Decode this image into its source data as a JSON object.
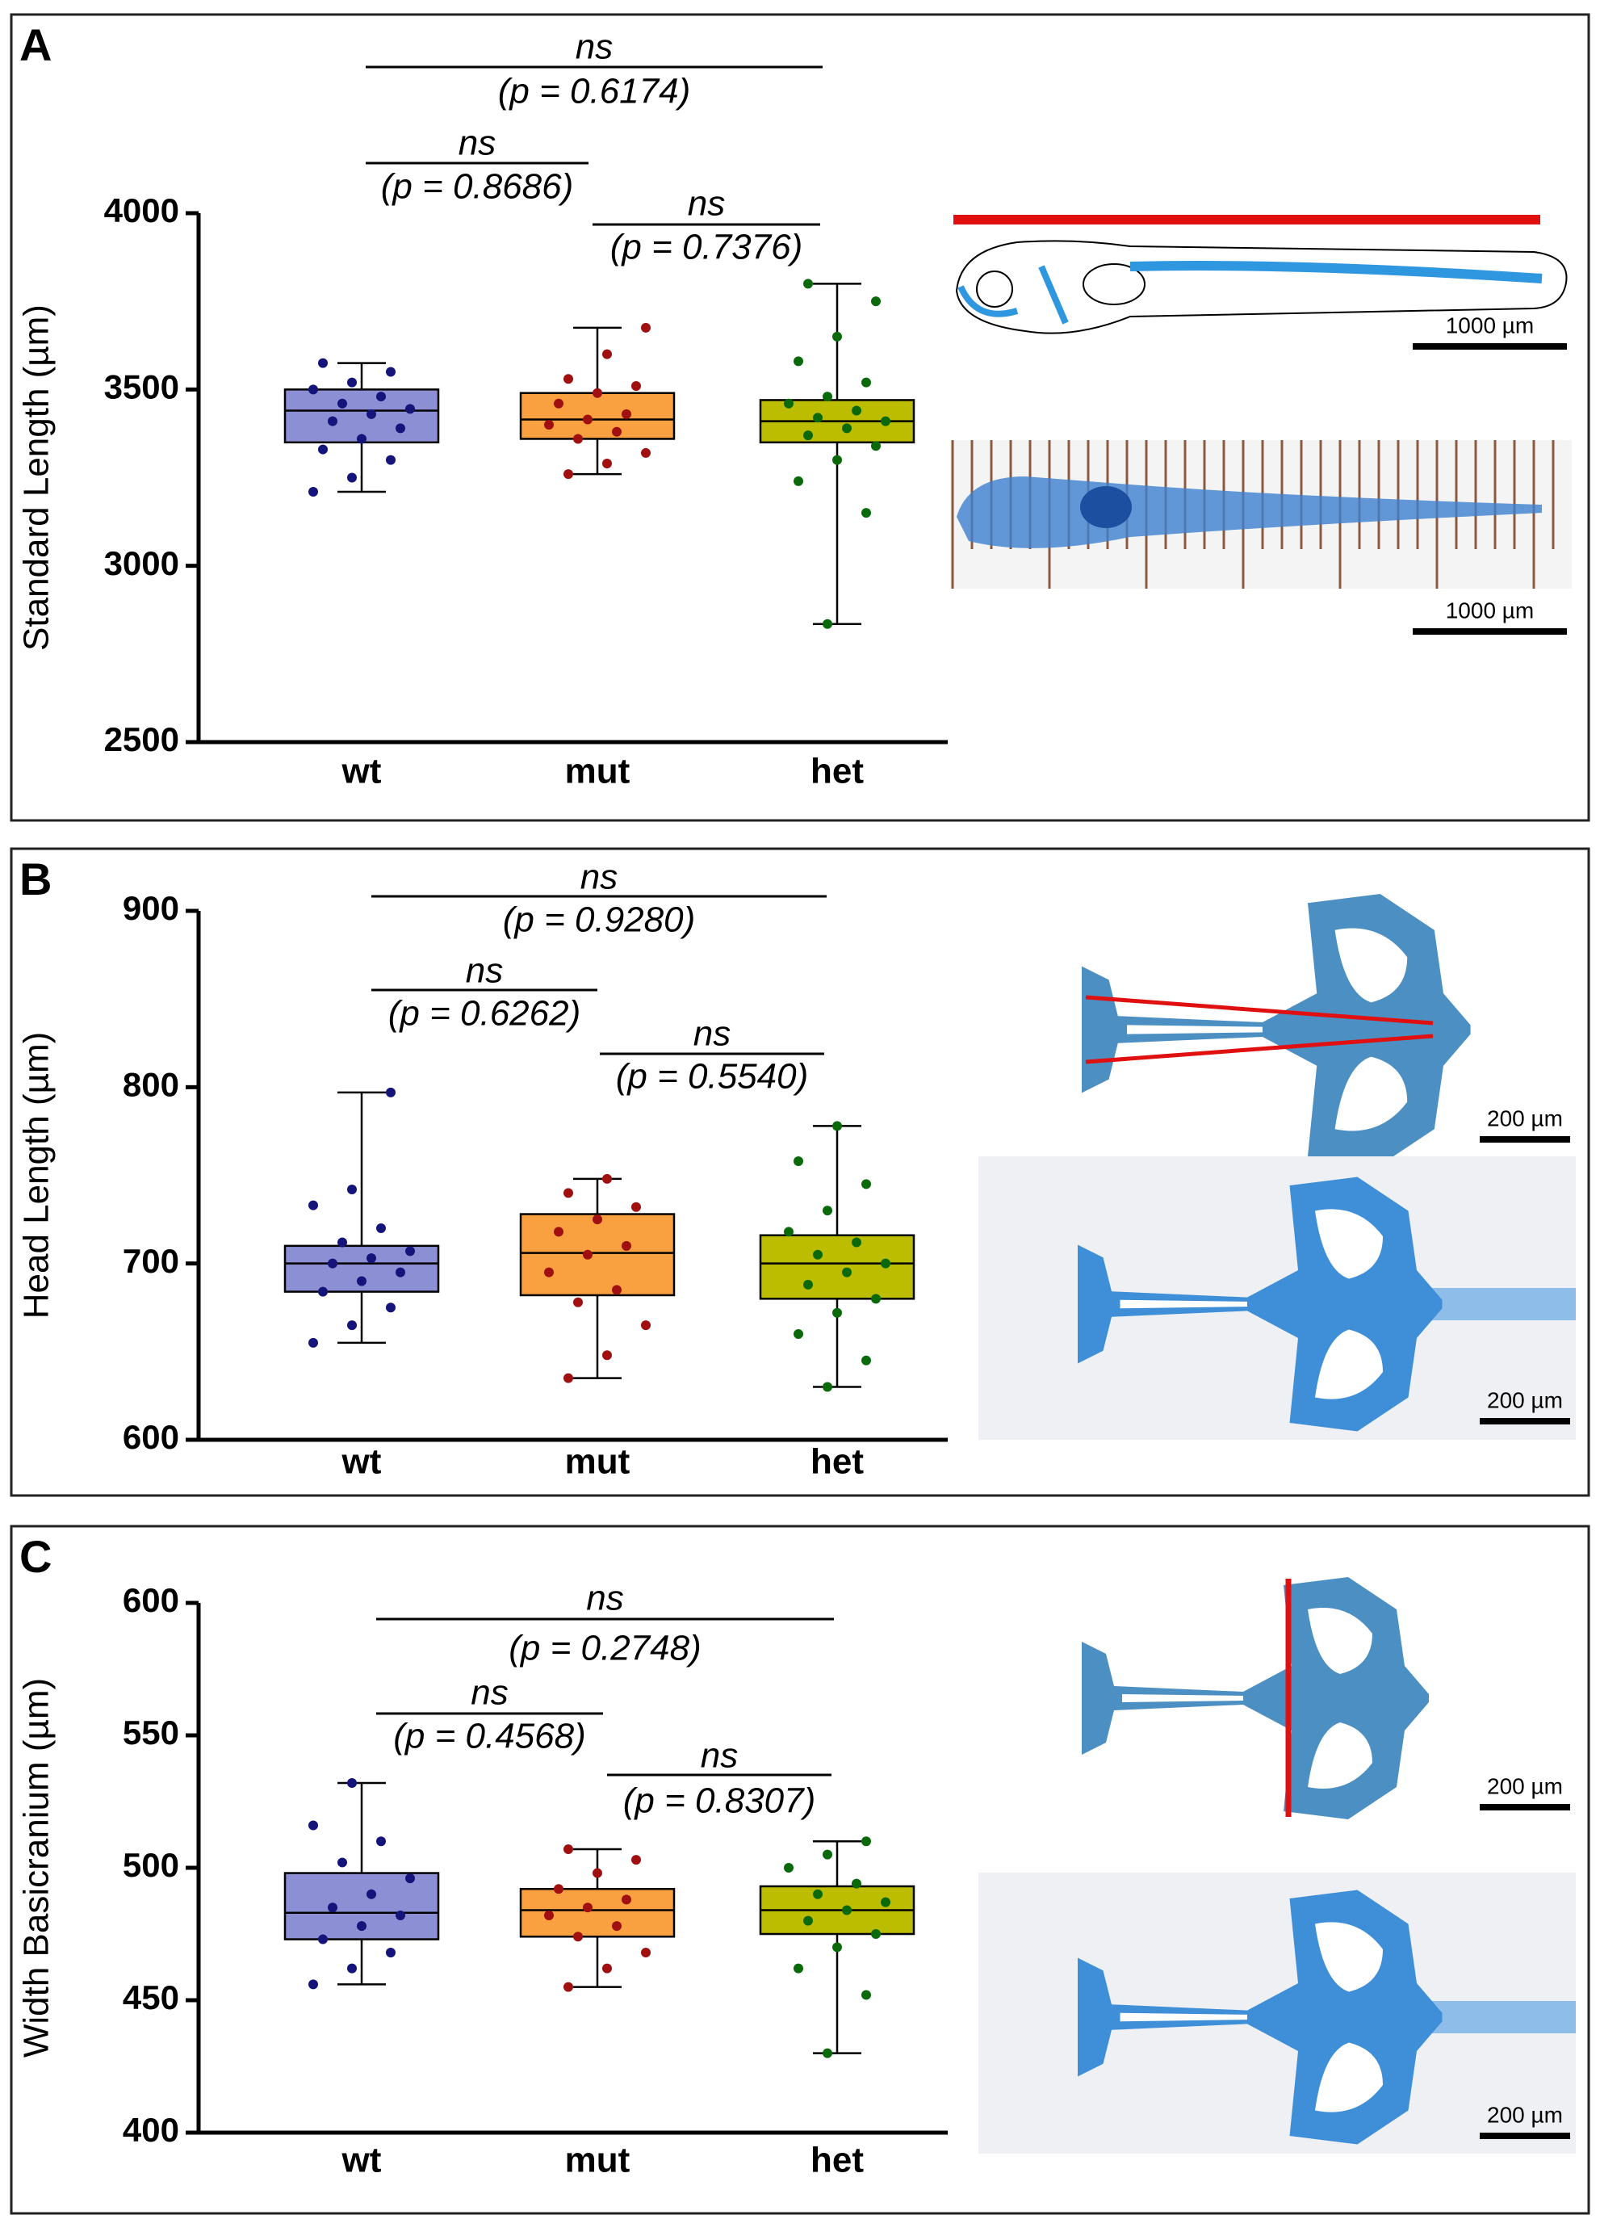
{
  "chart_data": [
    {
      "type": "box",
      "panel": "A",
      "ylabel": "Standard Length (µm)",
      "categories": [
        "wt",
        "mut",
        "het"
      ],
      "ylim": [
        2500,
        4000
      ],
      "yticks": [
        2500,
        3000,
        3500,
        4000
      ],
      "boxes": [
        {
          "min": 3210,
          "q1": 3350,
          "median": 3440,
          "q3": 3500,
          "max": 3575,
          "color": "#8c8fd4",
          "point_color": "#14147a",
          "points": [
            3210,
            3250,
            3300,
            3330,
            3360,
            3390,
            3410,
            3430,
            3445,
            3460,
            3480,
            3500,
            3520,
            3550,
            3575
          ]
        },
        {
          "min": 3260,
          "q1": 3360,
          "median": 3415,
          "q3": 3490,
          "max": 3675,
          "color": "#f9a040",
          "point_color": "#a01010",
          "points": [
            3260,
            3290,
            3320,
            3360,
            3380,
            3400,
            3415,
            3430,
            3460,
            3490,
            3510,
            3530,
            3600,
            3675
          ]
        },
        {
          "min": 2835,
          "q1": 3350,
          "median": 3410,
          "q3": 3470,
          "max": 3800,
          "color": "#bcbc00",
          "point_color": "#0a6a0a",
          "points": [
            2835,
            3150,
            3240,
            3300,
            3340,
            3370,
            3390,
            3410,
            3420,
            3440,
            3460,
            3480,
            3520,
            3580,
            3650,
            3750,
            3800
          ]
        }
      ],
      "comparisons": [
        {
          "label": "ns",
          "p": "(p = 0.6174)"
        },
        {
          "label": "ns",
          "p": "(p = 0.8686)"
        },
        {
          "label": "ns",
          "p": "(p = 0.7376)"
        }
      ],
      "scale_labels": [
        "1000 µm",
        "1000 µm"
      ]
    },
    {
      "type": "box",
      "panel": "B",
      "ylabel": "Head Length (µm)",
      "categories": [
        "wt",
        "mut",
        "het"
      ],
      "ylim": [
        600,
        900
      ],
      "yticks": [
        600,
        700,
        800,
        900
      ],
      "boxes": [
        {
          "min": 655,
          "q1": 684,
          "median": 700,
          "q3": 710,
          "max": 797,
          "color": "#8c8fd4",
          "point_color": "#14147a",
          "points": [
            655,
            665,
            675,
            684,
            690,
            695,
            700,
            703,
            707,
            712,
            720,
            733,
            742,
            797
          ]
        },
        {
          "min": 635,
          "q1": 682,
          "median": 706,
          "q3": 728,
          "max": 748,
          "color": "#f9a040",
          "point_color": "#a01010",
          "points": [
            635,
            648,
            665,
            678,
            685,
            695,
            705,
            710,
            718,
            725,
            732,
            740,
            748
          ]
        },
        {
          "min": 630,
          "q1": 680,
          "median": 700,
          "q3": 716,
          "max": 778,
          "color": "#bcbc00",
          "point_color": "#0a6a0a",
          "points": [
            630,
            645,
            660,
            672,
            680,
            688,
            695,
            700,
            705,
            712,
            718,
            730,
            745,
            758,
            778
          ]
        }
      ],
      "comparisons": [
        {
          "label": "ns",
          "p": "(p = 0.9280)"
        },
        {
          "label": "ns",
          "p": "(p = 0.6262)"
        },
        {
          "label": "ns",
          "p": "(p = 0.5540)"
        }
      ],
      "scale_labels": [
        "200 µm",
        "200 µm"
      ]
    },
    {
      "type": "box",
      "panel": "C",
      "ylabel": "Width Basicranium (µm)",
      "categories": [
        "wt",
        "mut",
        "het"
      ],
      "ylim": [
        400,
        600
      ],
      "yticks": [
        400,
        450,
        500,
        550,
        600
      ],
      "boxes": [
        {
          "min": 456,
          "q1": 473,
          "median": 483,
          "q3": 498,
          "max": 532,
          "color": "#8c8fd4",
          "point_color": "#14147a",
          "points": [
            456,
            462,
            468,
            473,
            478,
            482,
            485,
            490,
            496,
            502,
            510,
            516,
            532
          ]
        },
        {
          "min": 455,
          "q1": 474,
          "median": 484,
          "q3": 492,
          "max": 507,
          "color": "#f9a040",
          "point_color": "#a01010",
          "points": [
            455,
            462,
            468,
            474,
            478,
            482,
            485,
            488,
            492,
            498,
            503,
            507
          ]
        },
        {
          "min": 430,
          "q1": 475,
          "median": 484,
          "q3": 493,
          "max": 510,
          "color": "#bcbc00",
          "point_color": "#0a6a0a",
          "points": [
            430,
            452,
            462,
            470,
            475,
            480,
            484,
            487,
            490,
            494,
            500,
            505,
            510
          ]
        }
      ],
      "comparisons": [
        {
          "label": "ns",
          "p": "(p = 0.2748)"
        },
        {
          "label": "ns",
          "p": "(p = 0.4568)"
        },
        {
          "label": "ns",
          "p": "(p = 0.8307)"
        }
      ],
      "scale_labels": [
        "200 µm",
        "200 µm"
      ]
    }
  ]
}
